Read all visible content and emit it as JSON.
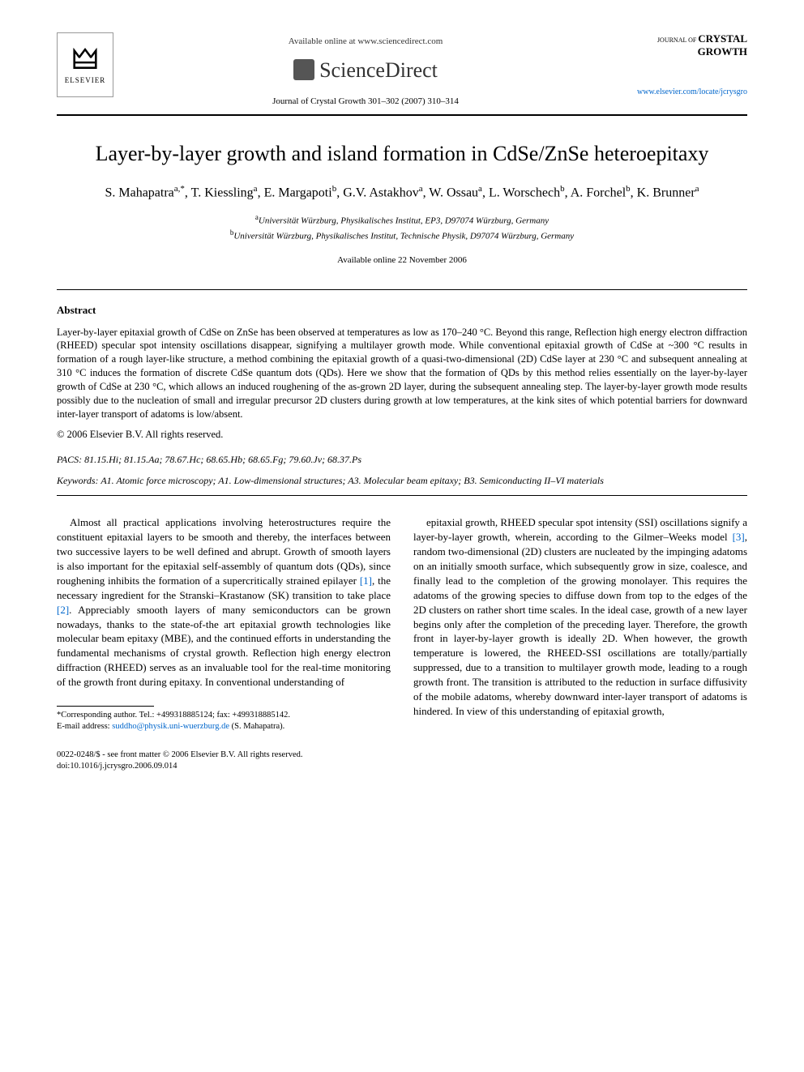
{
  "header": {
    "available_text": "Available online at www.sciencedirect.com",
    "sciencedirect_label": "ScienceDirect",
    "journal_ref": "Journal of Crystal Growth 301–302 (2007) 310–314",
    "elsevier_name": "ELSEVIER",
    "journal_logo_small": "JOURNAL OF",
    "journal_logo_big1": "CRYSTAL",
    "journal_logo_big2": "GROWTH",
    "journal_url": "www.elsevier.com/locate/jcrysgro"
  },
  "title": "Layer-by-layer growth and island formation in CdSe/ZnSe heteroepitaxy",
  "authors_html": "S. Mahapatra<sup>a,*</sup>, T. Kiessling<sup>a</sup>, E. Margapoti<sup>b</sup>, G.V. Astakhov<sup>a</sup>, W. Ossau<sup>a</sup>, L. Worschech<sup>b</sup>, A. Forchel<sup>b</sup>, K. Brunner<sup>a</sup>",
  "affiliations": {
    "a": "Universität Würzburg, Physikalisches Institut, EP3, D97074 Würzburg, Germany",
    "b": "Universität Würzburg, Physikalisches Institut, Technische Physik, D97074 Würzburg, Germany"
  },
  "date_available": "Available online 22 November 2006",
  "abstract": {
    "heading": "Abstract",
    "text": "Layer-by-layer epitaxial growth of CdSe on ZnSe has been observed at temperatures as low as 170–240 °C. Beyond this range, Reflection high energy electron diffraction (RHEED) specular spot intensity oscillations disappear, signifying a multilayer growth mode. While conventional epitaxial growth of CdSe at ~300 °C results in formation of a rough layer-like structure, a method combining the epitaxial growth of a quasi-two-dimensional (2D) CdSe layer at 230 °C and subsequent annealing at 310 °C induces the formation of discrete CdSe quantum dots (QDs). Here we show that the formation of QDs by this method relies essentially on the layer-by-layer growth of CdSe at 230 °C, which allows an induced roughening of the as-grown 2D layer, during the subsequent annealing step. The layer-by-layer growth mode results possibly due to the nucleation of small and irregular precursor 2D clusters during growth at low temperatures, at the kink sites of which potential barriers for downward inter-layer transport of adatoms is low/absent.",
    "copyright": "© 2006 Elsevier B.V. All rights reserved."
  },
  "pacs": "PACS: 81.15.Hi; 81.15.Aa; 78.67.Hc; 68.65.Hb; 68.65.Fg; 79.60.Jv; 68.37.Ps",
  "keywords": "Keywords: A1. Atomic force microscopy; A1. Low-dimensional structures; A3. Molecular beam epitaxy; B3. Semiconducting II–VI materials",
  "body": {
    "col1": "Almost all practical applications involving heterostructures require the constituent epitaxial layers to be smooth and thereby, the interfaces between two successive layers to be well defined and abrupt. Growth of smooth layers is also important for the epitaxial self-assembly of quantum dots (QDs), since roughening inhibits the formation of a supercritically strained epilayer [1], the necessary ingredient for the Stranski–Krastanow (SK) transition to take place [2]. Appreciably smooth layers of many semiconductors can be grown nowadays, thanks to the state-of-the art epitaxial growth technologies like molecular beam epitaxy (MBE), and the continued efforts in understanding the fundamental mechanisms of crystal growth. Reflection high energy electron diffraction (RHEED) serves as an invaluable tool for the real-time monitoring of the growth front during epitaxy. In conventional understanding of",
    "col2": "epitaxial growth, RHEED specular spot intensity (SSI) oscillations signify a layer-by-layer growth, wherein, according to the Gilmer–Weeks model [3], random two-dimensional (2D) clusters are nucleated by the impinging adatoms on an initially smooth surface, which subsequently grow in size, coalesce, and finally lead to the completion of the growing monolayer. This requires the adatoms of the growing species to diffuse down from top to the edges of the 2D clusters on rather short time scales. In the ideal case, growth of a new layer begins only after the completion of the preceding layer. Therefore, the growth front in layer-by-layer growth is ideally 2D. When however, the growth temperature is lowered, the RHEED-SSI oscillations are totally/partially suppressed, due to a transition to multilayer growth mode, leading to a rough growth front. The transition is attributed to the reduction in surface diffusivity of the mobile adatoms, whereby downward inter-layer transport of adatoms is hindered. In view of this understanding of epitaxial growth,"
  },
  "footnote": {
    "corresponding": "*Corresponding author. Tel.: +499318885124; fax: +499318885142.",
    "email_label": "E-mail address:",
    "email": "suddho@physik.uni-wuerzburg.de",
    "email_name": "(S. Mahapatra)."
  },
  "footer": {
    "line1": "0022-0248/$ - see front matter © 2006 Elsevier B.V. All rights reserved.",
    "line2": "doi:10.1016/j.jcrysgro.2006.09.014"
  },
  "colors": {
    "text": "#000000",
    "link": "#0066cc",
    "background": "#ffffff"
  }
}
